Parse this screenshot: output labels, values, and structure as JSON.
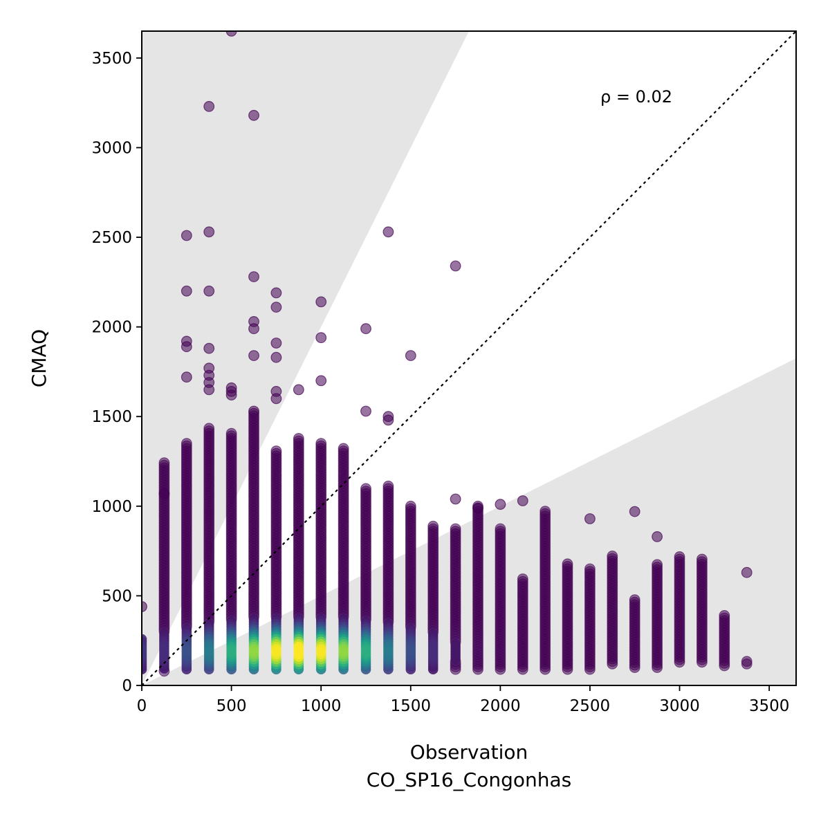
{
  "chart_data": {
    "type": "scatter",
    "xlabel_line1": "Observation",
    "xlabel_line2": "CO_SP16_Congonhas",
    "ylabel": "CMAQ",
    "annotation": "ρ = 0.02",
    "xlim": [
      0,
      3650
    ],
    "ylim": [
      0,
      3650
    ],
    "x_ticks": [
      "0",
      "500",
      "1000",
      "1500",
      "2000",
      "2500",
      "3000",
      "3500"
    ],
    "y_ticks": [
      "0",
      "500",
      "1000",
      "1500",
      "2000",
      "2500",
      "3000",
      "3500"
    ],
    "x_tick_values": [
      0,
      500,
      1000,
      1500,
      2000,
      2500,
      3000,
      3500
    ],
    "y_tick_values": [
      0,
      500,
      1000,
      1500,
      2000,
      2500,
      3000,
      3500
    ],
    "reference_line": "y = x",
    "shaded_band": "outside factor-of-2 (y > 2x and y < x/2)",
    "colormap": "viridis (point density)",
    "marker_color": "#440154",
    "shade_color": "#e5e5e5",
    "x_columns": [
      0,
      125,
      250,
      375,
      500,
      625,
      750,
      875,
      1000,
      1125,
      1250,
      1375,
      1500,
      1625,
      1750,
      1875,
      2000,
      2125,
      2250,
      2375,
      2500,
      2625,
      2750,
      2875,
      3000,
      3125,
      3250,
      3375
    ],
    "column_ranges": [
      [
        90,
        270
      ],
      [
        80,
        1250
      ],
      [
        90,
        1360
      ],
      [
        90,
        1440
      ],
      [
        90,
        1410
      ],
      [
        90,
        1520
      ],
      [
        90,
        1310
      ],
      [
        90,
        1390
      ],
      [
        90,
        1350
      ],
      [
        90,
        1330
      ],
      [
        90,
        1100
      ],
      [
        90,
        1120
      ],
      [
        90,
        1000
      ],
      [
        90,
        900
      ],
      [
        90,
        880
      ],
      [
        90,
        1000
      ],
      [
        90,
        880
      ],
      [
        90,
        600
      ],
      [
        90,
        980
      ],
      [
        90,
        690
      ],
      [
        90,
        650
      ],
      [
        120,
        730
      ],
      [
        100,
        480
      ],
      [
        100,
        680
      ],
      [
        130,
        720
      ],
      [
        130,
        710
      ],
      [
        110,
        390
      ],
      [
        120,
        140
      ]
    ],
    "outliers": [
      {
        "x": 0,
        "y": 440
      },
      {
        "x": 125,
        "y": 1070
      },
      {
        "x": 250,
        "y": 2510
      },
      {
        "x": 250,
        "y": 2200
      },
      {
        "x": 250,
        "y": 1920
      },
      {
        "x": 250,
        "y": 1890
      },
      {
        "x": 250,
        "y": 1720
      },
      {
        "x": 375,
        "y": 3230
      },
      {
        "x": 375,
        "y": 2530
      },
      {
        "x": 375,
        "y": 2200
      },
      {
        "x": 375,
        "y": 1880
      },
      {
        "x": 375,
        "y": 1770
      },
      {
        "x": 375,
        "y": 1730
      },
      {
        "x": 375,
        "y": 1690
      },
      {
        "x": 375,
        "y": 1650
      },
      {
        "x": 500,
        "y": 3650
      },
      {
        "x": 500,
        "y": 1660
      },
      {
        "x": 500,
        "y": 1640
      },
      {
        "x": 500,
        "y": 1620
      },
      {
        "x": 625,
        "y": 3180
      },
      {
        "x": 625,
        "y": 2280
      },
      {
        "x": 625,
        "y": 2030
      },
      {
        "x": 625,
        "y": 1990
      },
      {
        "x": 625,
        "y": 1840
      },
      {
        "x": 625,
        "y": 1530
      },
      {
        "x": 750,
        "y": 2190
      },
      {
        "x": 750,
        "y": 2110
      },
      {
        "x": 750,
        "y": 1910
      },
      {
        "x": 750,
        "y": 1830
      },
      {
        "x": 750,
        "y": 1640
      },
      {
        "x": 750,
        "y": 1600
      },
      {
        "x": 875,
        "y": 1650
      },
      {
        "x": 1000,
        "y": 2140
      },
      {
        "x": 1000,
        "y": 1940
      },
      {
        "x": 1000,
        "y": 1700
      },
      {
        "x": 1250,
        "y": 1990
      },
      {
        "x": 1250,
        "y": 1530
      },
      {
        "x": 1375,
        "y": 2530
      },
      {
        "x": 1375,
        "y": 1500
      },
      {
        "x": 1375,
        "y": 1480
      },
      {
        "x": 1500,
        "y": 1840
      },
      {
        "x": 1750,
        "y": 2340
      },
      {
        "x": 1750,
        "y": 1040
      },
      {
        "x": 1875,
        "y": 990
      },
      {
        "x": 2000,
        "y": 1010
      },
      {
        "x": 2125,
        "y": 1030
      },
      {
        "x": 2500,
        "y": 930
      },
      {
        "x": 2750,
        "y": 970
      },
      {
        "x": 2875,
        "y": 830
      },
      {
        "x": 3375,
        "y": 630
      }
    ],
    "dense_band": {
      "y_center": 190,
      "peak_x_range": [
        625,
        1125
      ]
    }
  }
}
